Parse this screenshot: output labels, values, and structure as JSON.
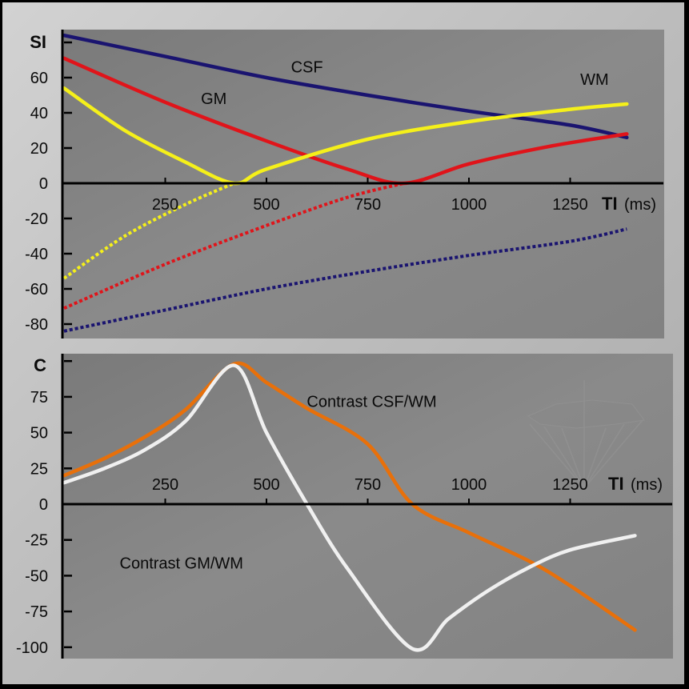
{
  "chart_data": [
    {
      "type": "line",
      "id": "signal",
      "ylabel": "SI",
      "xlabel_bold": "TI",
      "xlabel_unit": "(ms)",
      "xlim": [
        0,
        1390
      ],
      "ylim": [
        -88,
        88
      ],
      "xticks": [
        250,
        500,
        750,
        1000,
        1250
      ],
      "yticks": [
        60,
        40,
        20,
        0,
        -20,
        -40,
        -60,
        -80
      ],
      "annotations": [
        {
          "text": "CSF",
          "x": 600,
          "y": 63
        },
        {
          "text": "GM",
          "x": 370,
          "y": 45
        },
        {
          "text": "WM",
          "x": 1310,
          "y": 56
        }
      ],
      "series": [
        {
          "name": "CSF",
          "color": "#1a1470",
          "style": "solid",
          "x": [
            0,
            250,
            500,
            750,
            1000,
            1250,
            1390
          ],
          "y": [
            84,
            72,
            60,
            50,
            41,
            33,
            26
          ]
        },
        {
          "name": "GM",
          "color": "#e0141a",
          "style": "solid",
          "x": [
            0,
            250,
            500,
            700,
            840,
            1000,
            1200,
            1390
          ],
          "y": [
            71,
            46,
            24,
            8,
            0,
            11,
            21,
            28
          ]
        },
        {
          "name": "WM",
          "color": "#f5f01a",
          "style": "solid",
          "x": [
            0,
            150,
            300,
            420,
            500,
            750,
            1000,
            1250,
            1390
          ],
          "y": [
            54,
            30,
            12,
            0,
            8,
            25,
            35,
            42,
            45
          ]
        },
        {
          "name": "CSF (negative)",
          "color": "#1a1470",
          "style": "dotted",
          "x": [
            0,
            250,
            500,
            750,
            1000,
            1250,
            1390
          ],
          "y": [
            -84,
            -72,
            -60,
            -50,
            -41,
            -33,
            -26
          ]
        },
        {
          "name": "GM (negative)",
          "color": "#e0141a",
          "style": "dotted",
          "x": [
            0,
            250,
            500,
            700,
            840
          ],
          "y": [
            -71,
            -46,
            -24,
            -8,
            0
          ]
        },
        {
          "name": "WM (negative)",
          "color": "#f5f01a",
          "style": "dotted",
          "x": [
            0,
            150,
            300,
            420
          ],
          "y": [
            -54,
            -30,
            -12,
            0
          ]
        }
      ]
    },
    {
      "type": "line",
      "id": "contrast",
      "ylabel": "C",
      "xlabel_bold": "TI",
      "xlabel_unit": "(ms)",
      "xlim": [
        0,
        1410
      ],
      "ylim": [
        -108,
        108
      ],
      "xticks": [
        250,
        500,
        750,
        1000,
        1250
      ],
      "yticks": [
        75,
        50,
        25,
        0,
        -25,
        -50,
        -75,
        -100
      ],
      "annotations": [
        {
          "text": "Contrast CSF/WM",
          "x": 760,
          "y": 68
        },
        {
          "text": "Contrast GM/WM",
          "x": 290,
          "y": -45
        }
      ],
      "series": [
        {
          "name": "Contrast CSF/WM",
          "color": "#e8700a",
          "style": "solid",
          "x": [
            0,
            100,
            200,
            300,
            420,
            500,
            600,
            750,
            860,
            1000,
            1150,
            1250,
            1410
          ],
          "y": [
            20,
            32,
            47,
            66,
            98,
            85,
            67,
            42,
            0,
            -20,
            -40,
            -57,
            -88
          ]
        },
        {
          "name": "Contrast GM/WM",
          "color": "#f0f0f0",
          "style": "solid",
          "x": [
            0,
            100,
            200,
            300,
            420,
            500,
            600,
            700,
            860,
            950,
            1050,
            1150,
            1250,
            1410
          ],
          "y": [
            15,
            25,
            38,
            58,
            97,
            50,
            0,
            -45,
            -101,
            -80,
            -60,
            -44,
            -32,
            -22
          ]
        }
      ]
    }
  ],
  "watermark": {
    "icon": "globe-arrows-icon"
  }
}
